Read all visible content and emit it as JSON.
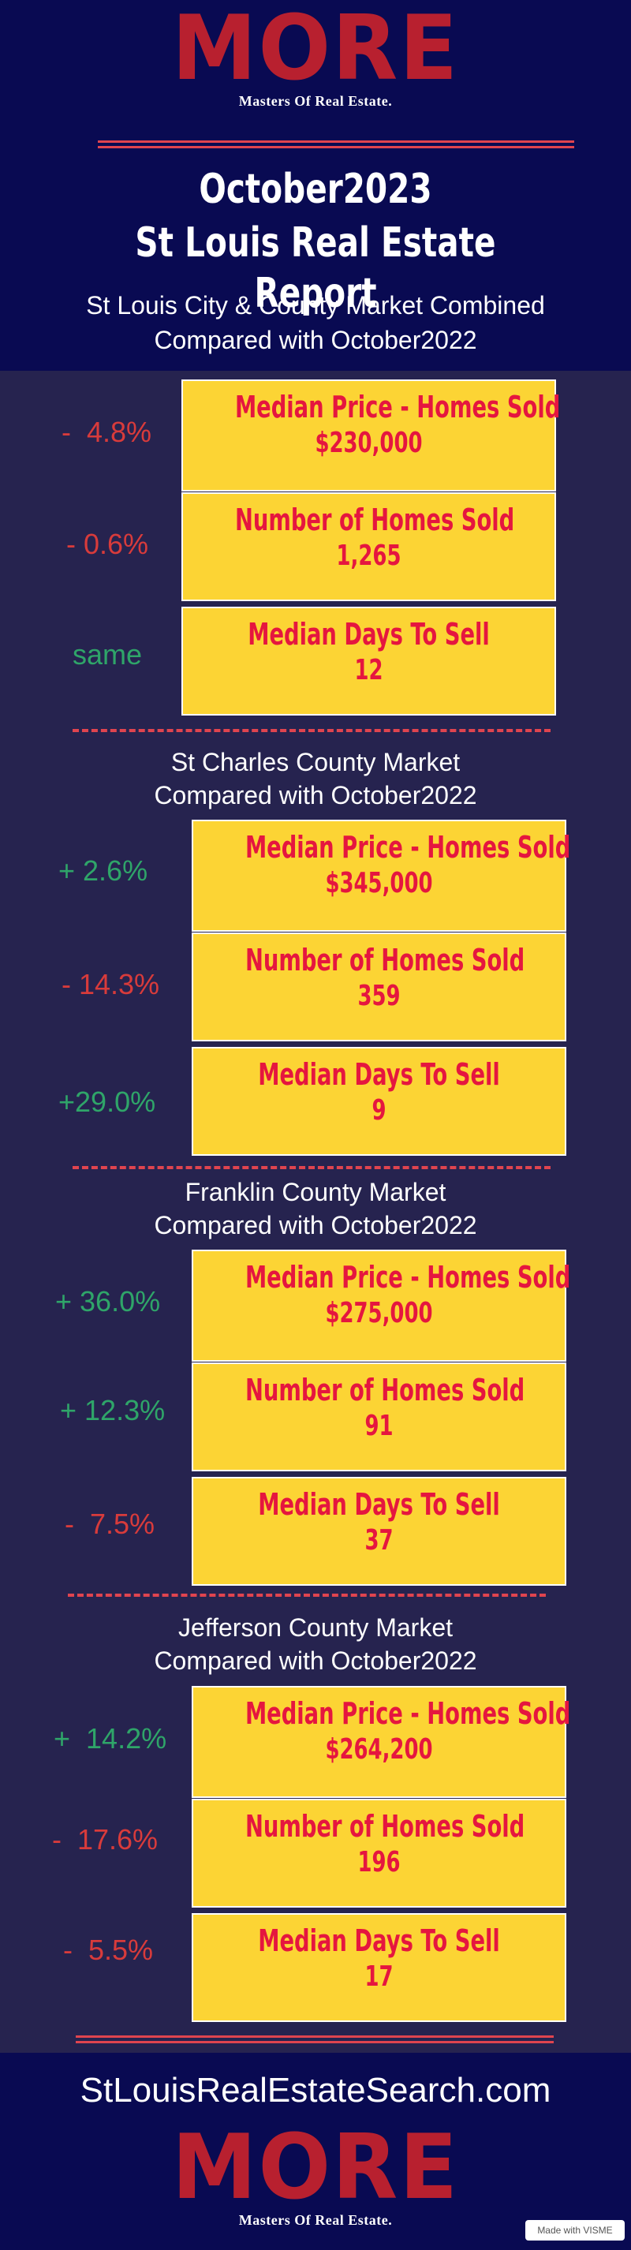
{
  "brand": {
    "logo_text": "MORE",
    "tagline": "Masters Of Real Estate.",
    "logo_color": "#b8202f"
  },
  "header": {
    "title_line1": "October2023",
    "title_line2": "St Louis Real Estate Report",
    "subtitle_line1": "St Louis City & County Market Combined",
    "subtitle_line2": "Compared with October2022"
  },
  "colors": {
    "header_bg": "#090a52",
    "body_bg": "#26234f",
    "box_bg": "#fcd434",
    "box_text": "#e5163f",
    "positive": "#2fa569",
    "negative": "#d83b3b",
    "rule": "#e0444f"
  },
  "sections": [
    {
      "title_line1": "",
      "title_line2": "",
      "metrics": [
        {
          "label": "Median Price - Homes Sold",
          "value": "$230,000",
          "change": "-  4.8%",
          "trend": "negative"
        },
        {
          "label": "Number of Homes Sold",
          "value": "1,265",
          "change": "- 0.6%",
          "trend": "negative"
        },
        {
          "label": "Median Days To Sell",
          "value": "12",
          "change": "same",
          "trend": "positive"
        }
      ]
    },
    {
      "title_line1": "St Charles County Market",
      "title_line2": "Compared with October2022",
      "metrics": [
        {
          "label": "Median Price - Homes Sold",
          "value": "$345,000",
          "change": "+ 2.6%",
          "trend": "positive"
        },
        {
          "label": "Number of Homes Sold",
          "value": "359",
          "change": "- 14.3%",
          "trend": "negative"
        },
        {
          "label": "Median Days To Sell",
          "value": "9",
          "change": "+29.0%",
          "trend": "positive"
        }
      ]
    },
    {
      "title_line1": "Franklin County Market",
      "title_line2": "Compared with October2022",
      "metrics": [
        {
          "label": "Median Price - Homes Sold",
          "value": "$275,000",
          "change": "+ 36.0%",
          "trend": "positive"
        },
        {
          "label": "Number of Homes Sold",
          "value": "91",
          "change": "+ 12.3%",
          "trend": "positive"
        },
        {
          "label": "Median Days To Sell",
          "value": "37",
          "change": "-  7.5%",
          "trend": "negative"
        }
      ]
    },
    {
      "title_line1": "Jefferson County Market",
      "title_line2": "Compared with October2022",
      "metrics": [
        {
          "label": "Median Price - Homes Sold",
          "value": "$264,200",
          "change": "+  14.2%",
          "trend": "positive"
        },
        {
          "label": "Number of Homes Sold",
          "value": "196",
          "change": "-  17.6%",
          "trend": "negative"
        },
        {
          "label": "Median Days To Sell",
          "value": "17",
          "change": "-  5.5%",
          "trend": "negative"
        }
      ]
    }
  ],
  "footer": {
    "website": "StLouisRealEstateSearch.com",
    "badge": "Made with VISME"
  }
}
